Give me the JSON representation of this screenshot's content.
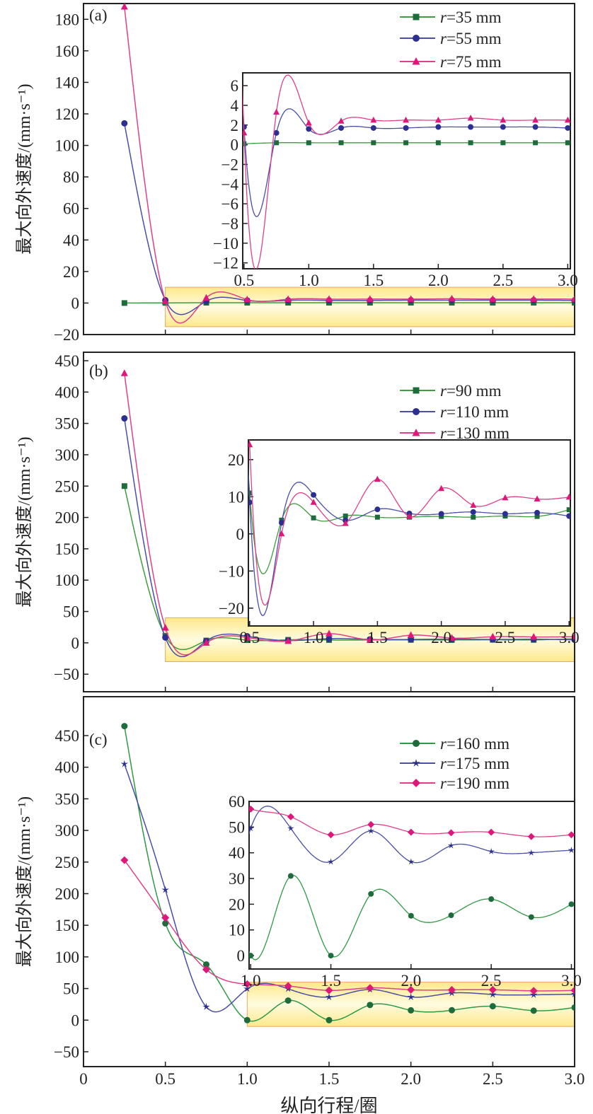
{
  "chart_data": [
    {
      "type": "line",
      "panel_label": "(a)",
      "ylabel": "最大向外速度/(mm·s⁻¹)",
      "xlabel": "",
      "xlim": [
        0,
        3.0
      ],
      "ylim": [
        -20,
        190
      ],
      "xticks": [
        "0",
        "0.5",
        "1.0",
        "1.5",
        "2.0",
        "2.5",
        "3.0"
      ],
      "yticks": [
        -20,
        0,
        20,
        40,
        60,
        80,
        100,
        120,
        140,
        160,
        180
      ],
      "x": [
        0.25,
        0.5,
        0.75,
        1.0,
        1.25,
        1.5,
        1.75,
        2.0,
        2.25,
        2.5,
        2.75,
        3.0
      ],
      "series": [
        {
          "name": "r=35 mm",
          "r": "35",
          "marker": "square",
          "color": "#1e6b3c",
          "line": "#3f9c3f",
          "values": [
            0,
            0.1,
            0.2,
            0.2,
            0.2,
            0.2,
            0.2,
            0.2,
            0.2,
            0.2,
            0.2,
            0.2
          ]
        },
        {
          "name": "r=55 mm",
          "r": "55",
          "marker": "circle",
          "color": "#2b2f8f",
          "line": "#4a4fa8",
          "values": [
            114,
            1.8,
            1.2,
            1.6,
            1.7,
            1.7,
            1.7,
            1.8,
            1.8,
            1.8,
            1.8,
            1.7
          ]
        },
        {
          "name": "r=75 mm",
          "r": "75",
          "marker": "triangle",
          "color": "#e0177a",
          "line": "#e0408a",
          "values": [
            188,
            1.2,
            3.3,
            2.2,
            2.4,
            2.5,
            2.5,
            2.5,
            2.7,
            2.5,
            2.5,
            2.5
          ]
        }
      ],
      "inset": {
        "xlim": [
          0.5,
          3.0
        ],
        "ylim": [
          -12.6,
          7.3
        ],
        "xticks": [
          "0.5",
          "1.0",
          "1.5",
          "2.0",
          "2.5",
          "3.0"
        ],
        "yticks": [
          -12,
          -10,
          -8,
          -6,
          -4,
          -2,
          0,
          2,
          4,
          6
        ],
        "highlight": {
          "x": [
            0.5,
            3.0
          ],
          "y": [
            -15,
            10
          ]
        }
      },
      "legend": "top-right"
    },
    {
      "type": "line",
      "panel_label": "(b)",
      "ylabel": "最大向外速度/(mm·s⁻¹)",
      "xlabel": "",
      "xlim": [
        0,
        3.0
      ],
      "ylim": [
        -78,
        463.5
      ],
      "xticks": [
        "0",
        "0.5",
        "1.0",
        "1.5",
        "2.0",
        "2.5",
        "3.0"
      ],
      "yticks": [
        -50,
        0,
        50,
        100,
        150,
        200,
        250,
        300,
        350,
        400,
        450
      ],
      "x": [
        0.25,
        0.5,
        0.75,
        1.0,
        1.25,
        1.5,
        1.75,
        2.0,
        2.25,
        2.5,
        2.75,
        3.0
      ],
      "series": [
        {
          "name": "r=90 mm",
          "r": "90",
          "marker": "square",
          "color": "#1e6b3c",
          "line": "#3f9c3f",
          "values": [
            250,
            11,
            3.7,
            4.3,
            4.8,
            4.5,
            4.5,
            4.7,
            4.5,
            4.8,
            4.7,
            6.5
          ]
        },
        {
          "name": "r=110 mm",
          "r": "110",
          "marker": "circle",
          "color": "#2b2f8f",
          "line": "#4a4fa8",
          "values": [
            358,
            8.5,
            3.0,
            10.5,
            3.6,
            6.6,
            5.5,
            5.4,
            5.9,
            5.4,
            5.7,
            4.8
          ]
        },
        {
          "name": "r=130 mm",
          "r": "130",
          "marker": "triangle",
          "color": "#e0177a",
          "line": "#e0408a",
          "values": [
            430,
            24,
            0,
            8.5,
            2.8,
            14.7,
            4.7,
            12.2,
            7.7,
            9.7,
            9.4,
            9.9
          ]
        }
      ],
      "inset": {
        "xlim": [
          0.5,
          3.0
        ],
        "ylim": [
          -24.8,
          25.3
        ],
        "xticks": [
          "0.5",
          "1.0",
          "1.5",
          "2.0",
          "2.5",
          "3.0"
        ],
        "yticks": [
          -20,
          -10,
          0,
          10,
          20
        ],
        "highlight": {
          "x": [
            0.5,
            3.0
          ],
          "y": [
            -30,
            40
          ]
        }
      },
      "legend": "top-right"
    },
    {
      "type": "line",
      "panel_label": "(c)",
      "ylabel": "最大向外速度/(mm·s⁻¹)",
      "xlabel": "纵向行程/圈",
      "xlim": [
        0,
        3.0
      ],
      "ylim": [
        -73.5,
        511.5
      ],
      "xticks": [
        "0",
        "0.5",
        "1.0",
        "1.5",
        "2.0",
        "2.5",
        "3.0"
      ],
      "yticks": [
        -50,
        0,
        50,
        100,
        150,
        200,
        250,
        300,
        350,
        400,
        450
      ],
      "x": [
        0.25,
        0.5,
        0.75,
        1.0,
        1.25,
        1.5,
        1.75,
        2.0,
        2.25,
        2.5,
        2.75,
        3.0
      ],
      "series": [
        {
          "name": "r=160 mm",
          "r": "160",
          "marker": "circle",
          "color": "#1e6b3c",
          "line": "#2f9a45",
          "values": [
            465,
            153,
            88,
            0,
            31,
            0,
            24,
            15.5,
            15.7,
            22,
            15,
            20
          ]
        },
        {
          "name": "r=175 mm",
          "r": "175",
          "marker": "star",
          "color": "#2b2f8f",
          "line": "#4a4fa8",
          "values": [
            405,
            206,
            21,
            49.5,
            49.5,
            36.5,
            48.5,
            36.5,
            42.8,
            40.5,
            40,
            41
          ]
        },
        {
          "name": "r=190 mm",
          "r": "190",
          "marker": "diamond",
          "color": "#e0177a",
          "line": "#e0408a",
          "values": [
            253,
            162,
            80,
            57,
            54,
            47,
            51,
            48,
            47.8,
            48,
            46.3,
            47
          ]
        }
      ],
      "inset": {
        "xlim": [
          1.0,
          3.0
        ],
        "ylim": [
          -5.2,
          60
        ],
        "xticks": [
          "1.0",
          "1.5",
          "2.0",
          "2.5",
          "3.0"
        ],
        "yticks": [
          0,
          10,
          20,
          30,
          40,
          50,
          60
        ],
        "highlight": {
          "x": [
            1.0,
            3.0
          ],
          "y": [
            -10,
            60
          ]
        }
      },
      "legend": "top-right"
    }
  ]
}
